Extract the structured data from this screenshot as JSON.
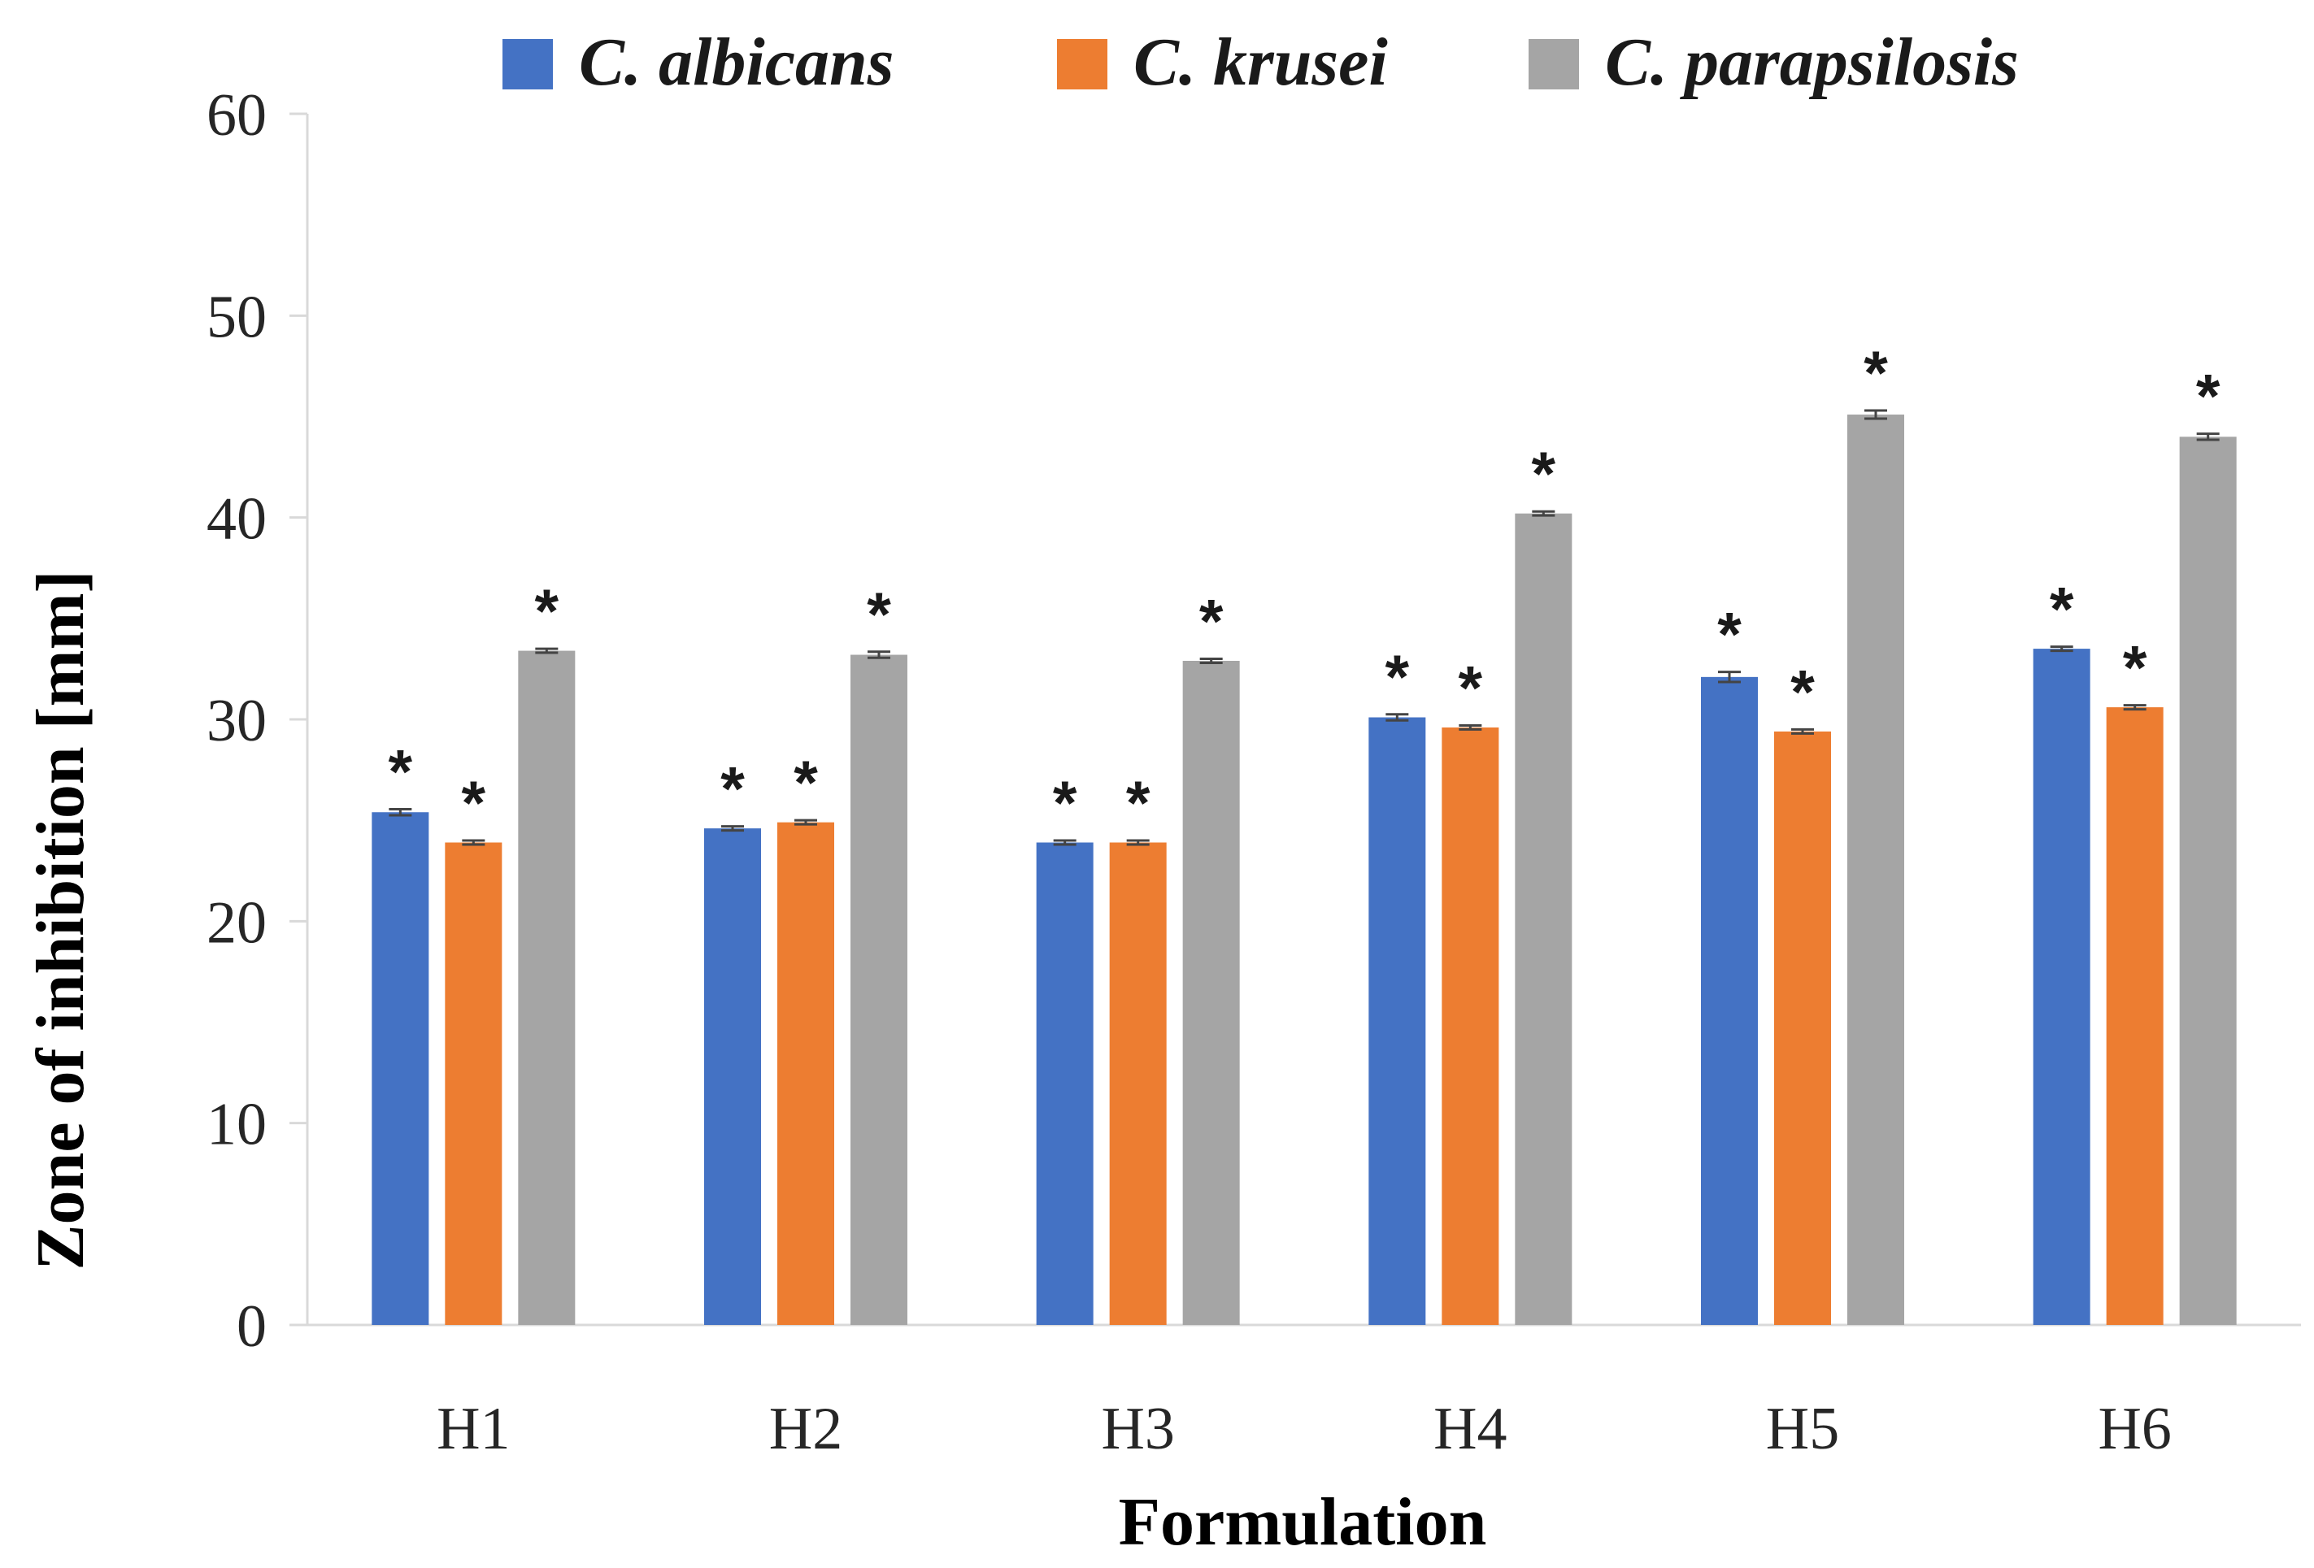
{
  "chart_data": {
    "type": "bar",
    "xlabel": "Formulation",
    "ylabel": "Zone of inhibition  [mm]",
    "ylim": [
      0,
      60
    ],
    "yticks": [
      "0",
      "10",
      "20",
      "30",
      "40",
      "50",
      "60"
    ],
    "categories": [
      "H1",
      "H2",
      "H3",
      "H4",
      "H5",
      "H6"
    ],
    "series": [
      {
        "name": "C. albicans",
        "color": "#4472C4",
        "values": [
          25.4,
          24.6,
          23.9,
          30.1,
          32.1,
          33.5
        ],
        "errors": [
          0.15,
          0.1,
          0.1,
          0.15,
          0.25,
          0.1
        ],
        "significance": [
          "*",
          "*",
          "*",
          "*",
          "*",
          "*"
        ]
      },
      {
        "name": "C. krusei",
        "color": "#ED7D31",
        "values": [
          23.9,
          24.9,
          23.9,
          29.6,
          29.4,
          30.6
        ],
        "errors": [
          0.1,
          0.1,
          0.1,
          0.1,
          0.1,
          0.1
        ],
        "significance": [
          "*",
          "*",
          "*",
          "*",
          "*",
          "*"
        ]
      },
      {
        "name": "C. parapsilosis",
        "color": "#A5A5A5",
        "values": [
          33.4,
          33.2,
          32.9,
          40.2,
          45.1,
          44.0
        ],
        "errors": [
          0.1,
          0.15,
          0.1,
          0.1,
          0.2,
          0.15
        ],
        "significance": [
          "*",
          "*",
          "*",
          "*",
          "*",
          "*"
        ]
      }
    ],
    "grid": false,
    "legend_position": "top"
  }
}
